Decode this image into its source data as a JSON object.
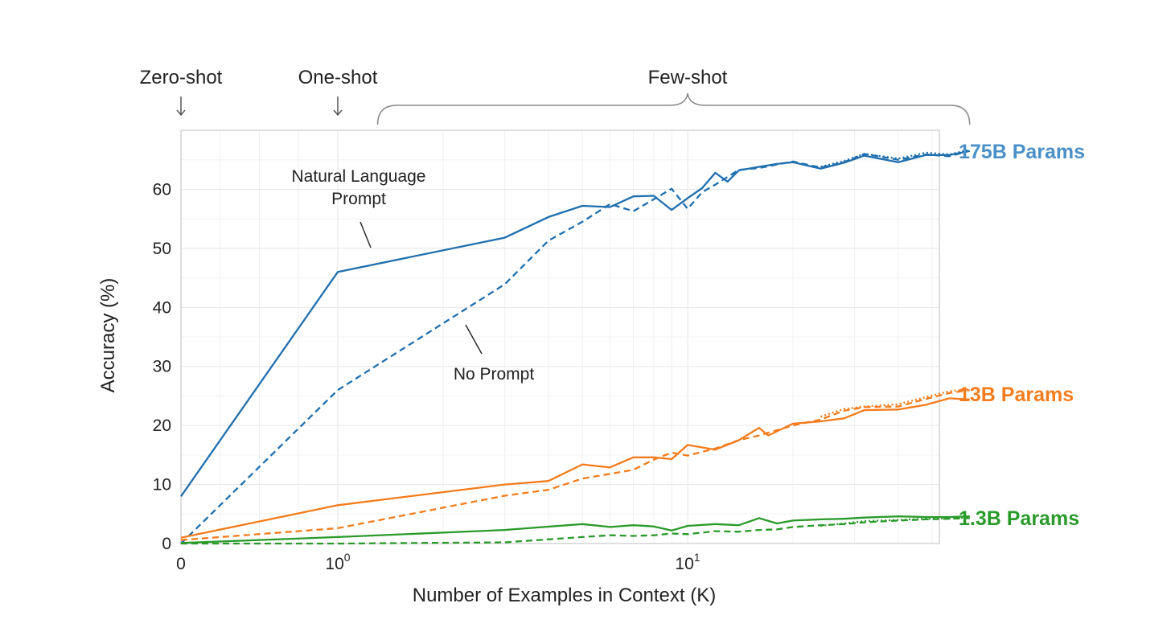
{
  "chart_data": {
    "type": "line",
    "xlabel": "Number of Examples in Context  (K)",
    "ylabel": "Accuracy (%)",
    "xscale": "symlog",
    "xlim": [
      0,
      64
    ],
    "ylim": [
      0,
      70
    ],
    "grid": true,
    "y_ticks": [
      0,
      10,
      20,
      30,
      40,
      50,
      60
    ],
    "x_ticks": [
      {
        "value": 0,
        "base": "0",
        "exp": ""
      },
      {
        "value": 1,
        "base": "10",
        "exp": "0"
      },
      {
        "value": 10,
        "base": "10",
        "exp": "1"
      }
    ],
    "regions": [
      {
        "label": "Zero-shot",
        "x": 0,
        "marker": "arrow"
      },
      {
        "label": "One-shot",
        "x": 1,
        "marker": "arrow"
      },
      {
        "label": "Few-shot",
        "x_range": [
          1.3,
          64
        ],
        "marker": "brace"
      }
    ],
    "annotations": [
      {
        "text": [
          "Natural Language",
          "Prompt"
        ],
        "target_series": "175B Params",
        "target_style": "solid"
      },
      {
        "text": [
          "No Prompt"
        ],
        "target_series": "175B Params",
        "target_style": "dashed"
      }
    ],
    "colors": {
      "blue": "#1f6fae",
      "orange": "#f47c1c",
      "green": "#2a9a2a",
      "blue_label": "#4a90c8"
    },
    "series": [
      {
        "name": "175B Params",
        "color": "#1f6fae",
        "label_color": "#4a90c8",
        "lines": [
          {
            "style": "solid",
            "x": [
              0,
              1,
              3,
              4,
              5,
              6,
              7,
              8,
              9,
              10,
              11,
              12,
              13,
              14,
              16,
              18,
              20,
              24,
              28,
              32,
              40,
              48,
              56,
              64
            ],
            "y": [
              8,
              46,
              51.8,
              55.3,
              57.2,
              57,
              58.8,
              58.9,
              56.5,
              58.5,
              60.2,
              62.8,
              61.3,
              63.2,
              63.8,
              64.3,
              64.6,
              63.5,
              64.5,
              65.7,
              64.6,
              65.8,
              65.8,
              66.5
            ]
          },
          {
            "style": "dashed",
            "x": [
              0,
              1,
              3,
              4,
              5,
              6,
              7,
              8,
              9,
              10,
              11,
              12,
              14,
              16,
              18,
              20,
              24,
              28,
              32,
              40,
              48,
              56,
              64
            ],
            "y": [
              0,
              26,
              43.9,
              51.3,
              54.5,
              57.5,
              56.3,
              58.3,
              60.1,
              56.7,
              59.5,
              60.8,
              63.3,
              63.6,
              64.2,
              64.7,
              63.7,
              64.6,
              66,
              65,
              65.9,
              65.6,
              66.5
            ]
          },
          {
            "style": "dotted",
            "x": [
              24,
              28,
              32,
              40,
              48,
              56,
              64
            ],
            "y": [
              63.8,
              64.8,
              66,
              65.2,
              66.2,
              65.9,
              66.7
            ]
          }
        ]
      },
      {
        "name": "13B Params",
        "color": "#f47c1c",
        "label_color": "#f47c1c",
        "lines": [
          {
            "style": "solid",
            "x": [
              0,
              1,
              3,
              4,
              5,
              6,
              7,
              8,
              9,
              10,
              12,
              14,
              16,
              17,
              20,
              24,
              28,
              32,
              40,
              48,
              56,
              64
            ],
            "y": [
              1,
              6.5,
              10,
              10.6,
              13.4,
              12.9,
              14.6,
              14.6,
              14.3,
              16.7,
              15.9,
              17.5,
              19.6,
              18.3,
              20.3,
              20.7,
              21.2,
              22.6,
              22.7,
              23.5,
              24.6,
              24.4
            ]
          },
          {
            "style": "dashed",
            "x": [
              0,
              1,
              3,
              4,
              5,
              6,
              7,
              8,
              9,
              10,
              12,
              14,
              16,
              20,
              24,
              28,
              32,
              40,
              48,
              56,
              64
            ],
            "y": [
              0.6,
              2.6,
              8.1,
              9.1,
              11,
              11.8,
              12.5,
              14.2,
              15.4,
              14.9,
              16.1,
              17.5,
              18.3,
              20,
              21,
              22.5,
              23.1,
              23.2,
              24.5,
              25.5,
              26
            ]
          },
          {
            "style": "dotted",
            "x": [
              24,
              28,
              32,
              40,
              48,
              56,
              64
            ],
            "y": [
              21.5,
              22.8,
              23.2,
              23.6,
              24.8,
              25.8,
              26.2
            ]
          }
        ]
      },
      {
        "name": "1.3B Params",
        "color": "#2a9a2a",
        "label_color": "#2a9a2a",
        "lines": [
          {
            "style": "solid",
            "x": [
              0,
              1,
              3,
              5,
              6,
              7,
              8,
              9,
              10,
              12,
              14,
              16,
              18,
              20,
              24,
              28,
              32,
              40,
              48,
              56,
              64
            ],
            "y": [
              0.1,
              1.1,
              2.3,
              3.3,
              2.8,
              3.1,
              2.9,
              2.2,
              3,
              3.3,
              3.1,
              4.3,
              3.4,
              3.9,
              4.1,
              4.2,
              4.4,
              4.6,
              4.5,
              4.5,
              4.6
            ]
          },
          {
            "style": "dashed",
            "x": [
              0,
              1,
              3,
              5,
              6,
              7,
              8,
              9,
              10,
              12,
              14,
              16,
              18,
              20,
              24,
              28,
              32,
              40,
              48,
              56,
              64
            ],
            "y": [
              0,
              0,
              0.2,
              1.1,
              1.4,
              1.3,
              1.4,
              1.7,
              1.6,
              2.1,
              2,
              2.3,
              2.4,
              2.8,
              3.1,
              3.3,
              3.6,
              3.9,
              4.1,
              4.2,
              4.3
            ]
          },
          {
            "style": "dotted",
            "x": [
              24,
              28,
              32,
              40,
              48,
              56,
              64
            ],
            "y": [
              3,
              3.4,
              3.8,
              4,
              4.2,
              4.3,
              4.4
            ]
          }
        ]
      }
    ]
  }
}
